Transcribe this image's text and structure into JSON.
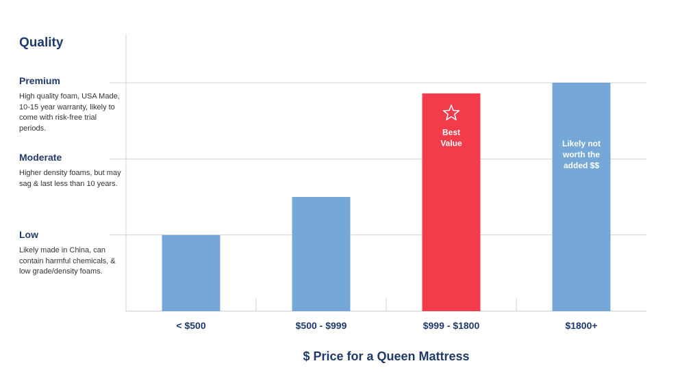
{
  "chart_data": {
    "type": "bar",
    "title": "",
    "xlabel": "$ Price for a Queen Mattress",
    "ylabel": "Quality",
    "categories": [
      "< $500",
      "$500 - $999",
      "$999 - $1800",
      "$1800+"
    ],
    "values": [
      1,
      1.5,
      2.86,
      3
    ],
    "ylim": [
      0,
      3
    ],
    "y_levels": [
      {
        "level": 1,
        "name": "Low",
        "description": "Likely made in China, can contain harmful chemicals, & low grade/density foams."
      },
      {
        "level": 2,
        "name": "Moderate",
        "description": "Higher density foams, but may sag & last less than 10 years."
      },
      {
        "level": 3,
        "name": "Premium",
        "description": "High quality foam, USA Made, 10-15 year warranty, likely to come with risk-free trial periods."
      }
    ],
    "grid": true,
    "colors": [
      "#75a7d7",
      "#75a7d7",
      "#f23b4b",
      "#75a7d7"
    ],
    "annotations": [
      {
        "category": "$999 - $1800",
        "icon": "star-icon",
        "lines": [
          "Best",
          "Value"
        ]
      },
      {
        "category": "$1800+",
        "lines": [
          "Likely not",
          "worth the",
          "added $$"
        ]
      }
    ]
  }
}
